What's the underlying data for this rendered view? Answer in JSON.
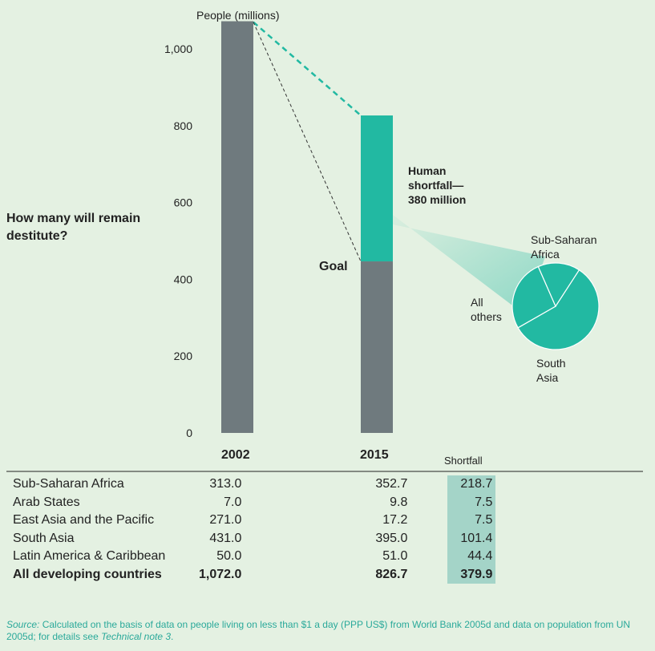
{
  "question": "How many will remain destitute?",
  "chart_data": {
    "type": "bar",
    "ylabel": "People (millions)",
    "ylim": [
      0,
      1000
    ],
    "yticks": [
      {
        "value": 0,
        "label": "0"
      },
      {
        "value": 200,
        "label": "200"
      },
      {
        "value": 400,
        "label": "400"
      },
      {
        "value": 600,
        "label": "600"
      },
      {
        "value": 800,
        "label": "800"
      },
      {
        "value": 1000,
        "label": "1,000"
      }
    ],
    "categories": [
      "2002",
      "2015"
    ],
    "values_2002": 1072.0,
    "values_2015_goal": 446.7,
    "values_2015_projected": 826.7,
    "goal_label": "Goal",
    "shortfall_label_lines": [
      "Human",
      "shortfall—",
      "380 million"
    ],
    "shortfall_value": 379.9,
    "pie": {
      "type": "pie",
      "slices": [
        {
          "name": "Sub-Saharan Africa",
          "value": 218.7,
          "label_lines": [
            "Sub-Saharan",
            "Africa"
          ]
        },
        {
          "name": "South Asia",
          "value": 101.4,
          "label_lines": [
            "South",
            "Asia"
          ]
        },
        {
          "name": "All others",
          "value": 59.8,
          "label_lines": [
            "All",
            "others"
          ]
        }
      ]
    },
    "colors": {
      "bar": "#6f7a7e",
      "shortfall": "#22b9a2",
      "teal_line": "#22b9a2",
      "goal_line": "#333333",
      "pie": "#22b9a2"
    }
  },
  "table": {
    "headers": {
      "y2002": "2002",
      "y2015": "2015",
      "shortfall": "Shortfall"
    },
    "rows": [
      {
        "region": "Sub-Saharan Africa",
        "y2002": "313.0",
        "y2015": "352.7",
        "shortfall": "218.7"
      },
      {
        "region": "Arab States",
        "y2002": "7.0",
        "y2015": "9.8",
        "shortfall": "7.5"
      },
      {
        "region": "East Asia and the Pacific",
        "y2002": "271.0",
        "y2015": "17.2",
        "shortfall": "7.5"
      },
      {
        "region": "South Asia",
        "y2002": "431.0",
        "y2015": "395.0",
        "shortfall": "101.4"
      },
      {
        "region": "Latin America & Caribbean",
        "y2002": "50.0",
        "y2015": "51.0",
        "shortfall": "44.4"
      }
    ],
    "total": {
      "region": "All developing countries",
      "y2002": "1,072.0",
      "y2015": "826.7",
      "shortfall": "379.9"
    }
  },
  "source": {
    "label": "Source:",
    "text": " Calculated on the basis of data on people living on less than $1 a day (PPP US$) from World Bank 2005d and data on population from UN 2005d; for details see ",
    "note": "Technical note 3",
    "end": "."
  }
}
